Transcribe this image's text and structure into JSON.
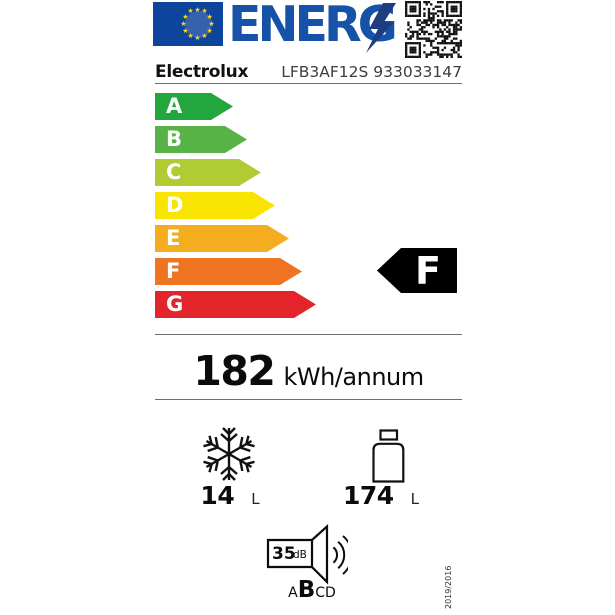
{
  "header": {
    "logo_text": "ENERG",
    "brand": "Electrolux",
    "model": "LFB3AF12S 933033147",
    "logo_color": "#1552a8",
    "flag_color": "#0e459c",
    "star_color": "#ffd51c",
    "bolt_color": "#1d3c82"
  },
  "scale": {
    "classes": [
      {
        "label": "A",
        "color": "#22a63e"
      },
      {
        "label": "B",
        "color": "#57b345"
      },
      {
        "label": "C",
        "color": "#b0cb33"
      },
      {
        "label": "D",
        "color": "#f9e300"
      },
      {
        "label": "E",
        "color": "#f4ad1f"
      },
      {
        "label": "F",
        "color": "#ee7422"
      },
      {
        "label": "G",
        "color": "#e3242b"
      }
    ]
  },
  "rating": {
    "class": "F",
    "arrow_color": "#000000",
    "text_color": "#ffffff"
  },
  "energy": {
    "value": "182",
    "unit": "kWh/annum"
  },
  "compartments": {
    "freezer": {
      "icon": "snowflake-icon",
      "value": "14",
      "unit": "L"
    },
    "fridge": {
      "icon": "bottle-icon",
      "value": "174",
      "unit": "L"
    }
  },
  "noise": {
    "value": "35",
    "unit": "dB",
    "classes": [
      "A",
      "B",
      "C",
      "D"
    ],
    "active_class": "B"
  },
  "regulation": "2019/2016"
}
